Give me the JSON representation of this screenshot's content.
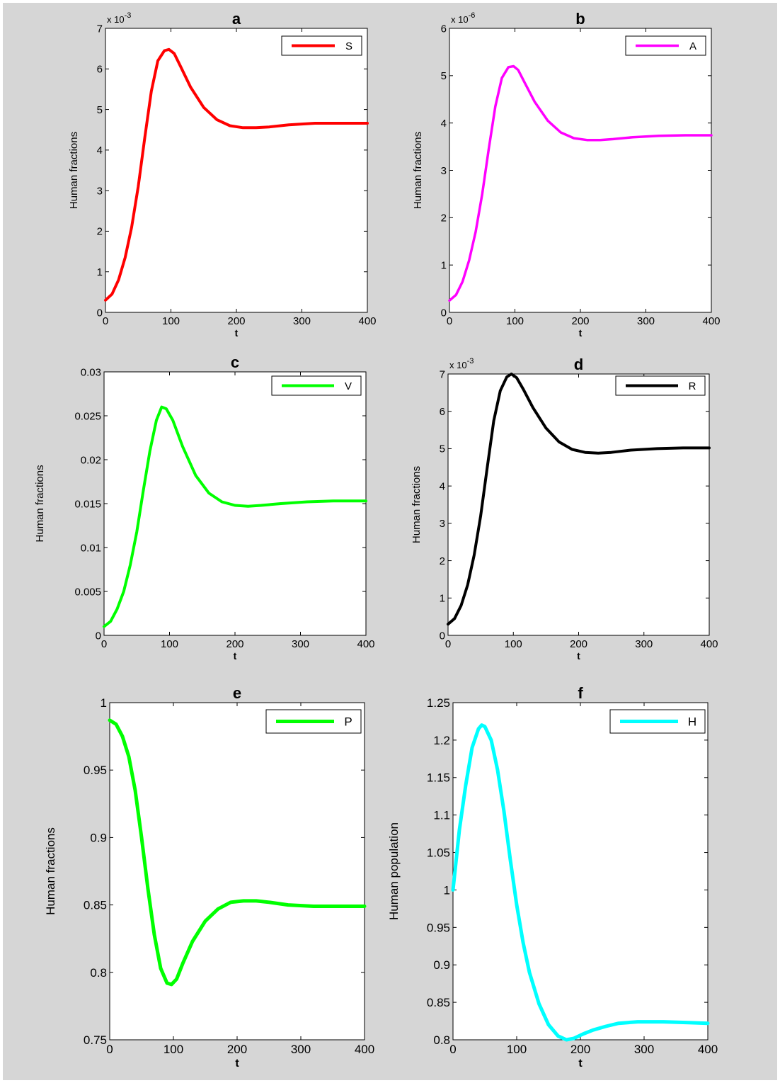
{
  "chart_data": [
    {
      "type": "line",
      "panel_label": "a",
      "exponent_label": "x 10",
      "exponent_power": "-3",
      "xlabel": "t",
      "ylabel": "Human fractions",
      "xlim": [
        0,
        400
      ],
      "ylim": [
        0,
        7
      ],
      "xticks": [
        0,
        100,
        200,
        300,
        400
      ],
      "yticks": [
        0,
        1,
        2,
        3,
        4,
        5,
        6,
        7
      ],
      "ytick_labels": [
        "0",
        "1",
        "2",
        "3",
        "4",
        "5",
        "6",
        "7"
      ],
      "legend_position": "top-right",
      "series": [
        {
          "name": "S",
          "color": "#ff0000",
          "x": [
            0,
            10,
            20,
            30,
            40,
            50,
            60,
            70,
            80,
            90,
            97,
            105,
            115,
            130,
            150,
            170,
            190,
            210,
            230,
            250,
            280,
            320,
            360,
            400
          ],
          "y": [
            0.3,
            0.45,
            0.8,
            1.35,
            2.1,
            3.1,
            4.3,
            5.45,
            6.2,
            6.45,
            6.48,
            6.38,
            6.05,
            5.55,
            5.05,
            4.75,
            4.6,
            4.55,
            4.55,
            4.57,
            4.62,
            4.66,
            4.66,
            4.66
          ]
        }
      ]
    },
    {
      "type": "line",
      "panel_label": "b",
      "exponent_label": "x 10",
      "exponent_power": "-6",
      "xlabel": "t",
      "ylabel": "Human fractions",
      "xlim": [
        0,
        400
      ],
      "ylim": [
        0,
        6
      ],
      "xticks": [
        0,
        100,
        200,
        300,
        400
      ],
      "yticks": [
        0,
        1,
        2,
        3,
        4,
        5,
        6
      ],
      "ytick_labels": [
        "0",
        "1",
        "2",
        "3",
        "4",
        "5",
        "6"
      ],
      "legend_position": "top-right",
      "series": [
        {
          "name": "A",
          "color": "#ff00ff",
          "x": [
            0,
            10,
            20,
            30,
            40,
            50,
            60,
            70,
            80,
            90,
            98,
            105,
            115,
            130,
            150,
            170,
            190,
            210,
            230,
            250,
            280,
            320,
            360,
            400
          ],
          "y": [
            0.25,
            0.37,
            0.65,
            1.1,
            1.7,
            2.5,
            3.45,
            4.35,
            4.95,
            5.18,
            5.2,
            5.12,
            4.85,
            4.45,
            4.05,
            3.8,
            3.68,
            3.64,
            3.64,
            3.66,
            3.7,
            3.73,
            3.74,
            3.74
          ]
        }
      ]
    },
    {
      "type": "line",
      "panel_label": "c",
      "exponent_label": "",
      "exponent_power": "",
      "xlabel": "t",
      "ylabel": "Human fractions",
      "xlim": [
        0,
        400
      ],
      "ylim": [
        0,
        0.03
      ],
      "xticks": [
        0,
        100,
        200,
        300,
        400
      ],
      "yticks": [
        0,
        0.005,
        0.01,
        0.015,
        0.02,
        0.025,
        0.03
      ],
      "ytick_labels": [
        "0",
        "0.005",
        "0.01",
        "0.015",
        "0.02",
        "0.025",
        "0.03"
      ],
      "legend_position": "top-right",
      "series": [
        {
          "name": "V",
          "color": "#00ff00",
          "x": [
            0,
            10,
            20,
            30,
            40,
            50,
            60,
            70,
            80,
            88,
            95,
            105,
            120,
            140,
            160,
            180,
            200,
            220,
            240,
            270,
            310,
            350,
            400
          ],
          "y": [
            0.001,
            0.0016,
            0.003,
            0.005,
            0.008,
            0.0118,
            0.0165,
            0.021,
            0.0245,
            0.026,
            0.0258,
            0.0245,
            0.0215,
            0.0182,
            0.0162,
            0.0152,
            0.0148,
            0.0147,
            0.0148,
            0.015,
            0.0152,
            0.0153,
            0.0153
          ]
        }
      ]
    },
    {
      "type": "line",
      "panel_label": "d",
      "exponent_label": "x 10",
      "exponent_power": "-3",
      "xlabel": "t",
      "ylabel": "Human fractions",
      "xlim": [
        0,
        400
      ],
      "ylim": [
        0,
        7
      ],
      "xticks": [
        0,
        100,
        200,
        300,
        400
      ],
      "yticks": [
        0,
        1,
        2,
        3,
        4,
        5,
        6,
        7
      ],
      "ytick_labels": [
        "0",
        "1",
        "2",
        "3",
        "4",
        "5",
        "6",
        "7"
      ],
      "legend_position": "top-right",
      "series": [
        {
          "name": "R",
          "color": "#000000",
          "x": [
            0,
            10,
            20,
            30,
            40,
            50,
            60,
            70,
            80,
            90,
            97,
            105,
            115,
            130,
            150,
            170,
            190,
            210,
            230,
            250,
            280,
            320,
            360,
            400
          ],
          "y": [
            0.3,
            0.45,
            0.8,
            1.35,
            2.15,
            3.2,
            4.5,
            5.75,
            6.55,
            6.92,
            7.0,
            6.9,
            6.6,
            6.1,
            5.55,
            5.18,
            4.98,
            4.9,
            4.88,
            4.9,
            4.96,
            5.0,
            5.02,
            5.02
          ]
        }
      ]
    },
    {
      "type": "line",
      "panel_label": "e",
      "exponent_label": "",
      "exponent_power": "",
      "xlabel": "t",
      "ylabel": "Human fractions",
      "xlim": [
        0,
        400
      ],
      "ylim": [
        0.75,
        1
      ],
      "xticks": [
        0,
        100,
        200,
        300,
        400
      ],
      "yticks": [
        0.75,
        0.8,
        0.85,
        0.9,
        0.95,
        1
      ],
      "ytick_labels": [
        "0.75",
        "0.8",
        "0.85",
        "0.9",
        "0.95",
        "1"
      ],
      "legend_position": "top-right",
      "series": [
        {
          "name": "P",
          "color": "#00ff00",
          "x": [
            0,
            10,
            20,
            30,
            40,
            50,
            60,
            70,
            80,
            90,
            97,
            105,
            115,
            130,
            150,
            170,
            190,
            210,
            230,
            250,
            280,
            320,
            360,
            400
          ],
          "y": [
            0.987,
            0.984,
            0.975,
            0.96,
            0.935,
            0.9,
            0.862,
            0.828,
            0.803,
            0.792,
            0.791,
            0.795,
            0.807,
            0.823,
            0.838,
            0.847,
            0.852,
            0.853,
            0.853,
            0.852,
            0.85,
            0.849,
            0.849,
            0.849
          ]
        }
      ]
    },
    {
      "type": "line",
      "panel_label": "f",
      "exponent_label": "",
      "exponent_power": "",
      "xlabel": "t",
      "ylabel": "Human population",
      "xlim": [
        0,
        400
      ],
      "ylim": [
        0.8,
        1.25
      ],
      "xticks": [
        0,
        100,
        200,
        300,
        400
      ],
      "yticks": [
        0.8,
        0.85,
        0.9,
        0.95,
        1,
        1.05,
        1.1,
        1.15,
        1.2,
        1.25
      ],
      "ytick_labels": [
        "0.8",
        "0.85",
        "0.9",
        "0.95",
        "1",
        "1.05",
        "1.1",
        "1.15",
        "1.2",
        "1.25"
      ],
      "legend_position": "top-right",
      "series": [
        {
          "name": "H",
          "color": "#00ffff",
          "x": [
            0,
            5,
            10,
            20,
            30,
            40,
            45,
            50,
            60,
            70,
            80,
            90,
            100,
            110,
            120,
            135,
            150,
            165,
            178,
            190,
            205,
            220,
            240,
            260,
            290,
            330,
            370,
            400
          ],
          "y": [
            1.0,
            1.04,
            1.08,
            1.14,
            1.19,
            1.215,
            1.22,
            1.218,
            1.2,
            1.16,
            1.105,
            1.04,
            0.98,
            0.93,
            0.89,
            0.848,
            0.82,
            0.805,
            0.8,
            0.802,
            0.808,
            0.813,
            0.818,
            0.822,
            0.824,
            0.824,
            0.823,
            0.822
          ]
        }
      ]
    }
  ]
}
